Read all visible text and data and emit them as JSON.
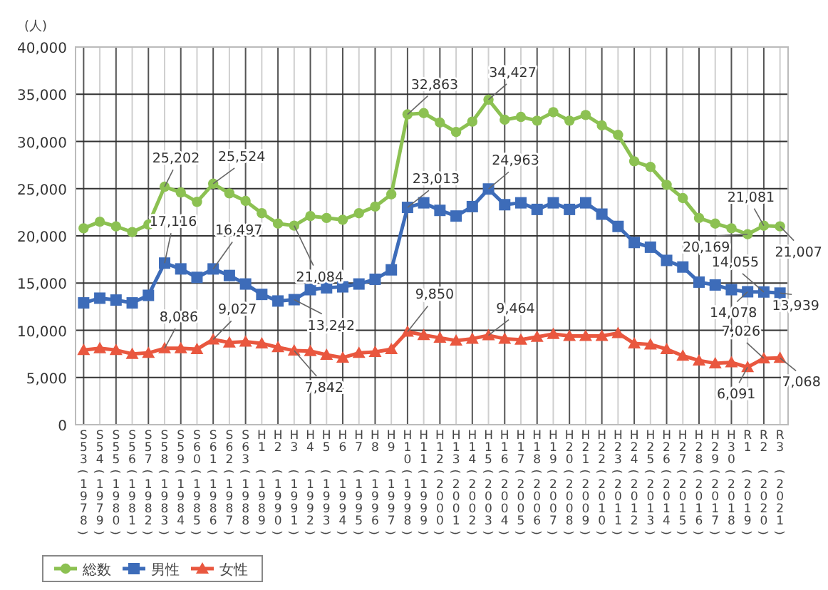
{
  "chart_data": {
    "type": "line",
    "ylabel": "(人)",
    "categories": [
      "S53(1978)",
      "S54(1979)",
      "S55(1980)",
      "S56(1981)",
      "S57(1982)",
      "S58(1983)",
      "S59(1984)",
      "S60(1985)",
      "S61(1986)",
      "S62(1987)",
      "S63(1988)",
      "H1(1989)",
      "H2(1990)",
      "H3(1991)",
      "H4(1992)",
      "H5(1993)",
      "H6(1994)",
      "H7(1995)",
      "H8(1996)",
      "H9(1997)",
      "H10(1998)",
      "H11(1999)",
      "H12(2000)",
      "H13(2001)",
      "H14(2002)",
      "H15(2003)",
      "H16(2004)",
      "H17(2005)",
      "H18(2006)",
      "H19(2007)",
      "H20(2008)",
      "H21(2009)",
      "H22(2010)",
      "H23(2011)",
      "H24(2012)",
      "H25(2013)",
      "H26(2014)",
      "H27(2015)",
      "H28(2016)",
      "H29(2017)",
      "H30(2018)",
      "R1(2019)",
      "R2(2020)",
      "R3(2021)"
    ],
    "series": [
      {
        "name": "総数",
        "color": "#8cc152",
        "marker": "circle",
        "values": [
          20800,
          21500,
          21000,
          20400,
          21200,
          25202,
          24600,
          23600,
          25524,
          24500,
          23700,
          22400,
          21300,
          21084,
          22100,
          21900,
          21700,
          22400,
          23100,
          24400,
          32863,
          33000,
          32000,
          31000,
          32100,
          34427,
          32300,
          32600,
          32200,
          33100,
          32200,
          32800,
          31700,
          30700,
          27900,
          27300,
          25400,
          24000,
          21900,
          21300,
          20800,
          20169,
          21081,
          21007
        ],
        "value_labels": [
          null,
          null,
          null,
          null,
          null,
          "25,202",
          null,
          null,
          "25,524",
          null,
          null,
          null,
          null,
          "21,084",
          null,
          null,
          null,
          null,
          null,
          null,
          "32,863",
          null,
          null,
          null,
          null,
          "34,427",
          null,
          null,
          null,
          null,
          null,
          null,
          null,
          null,
          null,
          null,
          null,
          null,
          null,
          null,
          null,
          "20,169",
          "21,081",
          "21,007"
        ]
      },
      {
        "name": "男性",
        "color": "#3d6cb9",
        "marker": "square",
        "values": [
          12900,
          13400,
          13200,
          12900,
          13700,
          17116,
          16500,
          15600,
          16497,
          15800,
          14900,
          13800,
          13100,
          13242,
          14300,
          14500,
          14600,
          14900,
          15400,
          16400,
          23013,
          23500,
          22700,
          22100,
          23100,
          24963,
          23300,
          23500,
          22800,
          23500,
          22800,
          23500,
          22300,
          21000,
          19300,
          18800,
          17400,
          16700,
          15100,
          14800,
          14300,
          14078,
          14055,
          13939
        ],
        "value_labels": [
          null,
          null,
          null,
          null,
          null,
          "17,116",
          null,
          null,
          "16,497",
          null,
          null,
          null,
          null,
          "13,242",
          null,
          null,
          null,
          null,
          null,
          null,
          "23,013",
          null,
          null,
          null,
          null,
          "24,963",
          null,
          null,
          null,
          null,
          null,
          null,
          null,
          null,
          null,
          null,
          null,
          null,
          null,
          null,
          null,
          "14,078",
          "14,055",
          "13,939"
        ]
      },
      {
        "name": "女性",
        "color": "#e9573f",
        "marker": "triangle",
        "values": [
          7900,
          8100,
          7900,
          7500,
          7600,
          8086,
          8100,
          8000,
          9027,
          8700,
          8800,
          8600,
          8200,
          7842,
          7800,
          7400,
          7100,
          7600,
          7700,
          8000,
          9850,
          9500,
          9200,
          8900,
          9100,
          9464,
          9100,
          9000,
          9300,
          9600,
          9400,
          9400,
          9400,
          9700,
          8600,
          8500,
          8000,
          7300,
          6800,
          6500,
          6600,
          6091,
          7026,
          7068
        ],
        "value_labels": [
          null,
          null,
          null,
          null,
          null,
          "8,086",
          null,
          null,
          "9,027",
          null,
          null,
          null,
          null,
          "7,842",
          null,
          null,
          null,
          null,
          null,
          null,
          "9,850",
          null,
          null,
          null,
          null,
          "9,464",
          null,
          null,
          null,
          null,
          null,
          null,
          null,
          null,
          null,
          null,
          null,
          null,
          null,
          null,
          null,
          "6,091",
          "7,026",
          "7,068"
        ]
      }
    ],
    "ylim": [
      0,
      40000
    ],
    "yticks": [
      0,
      {
        "value": 5000,
        "label": "5,000"
      },
      {
        "value": 10000,
        "label": "10,000"
      },
      {
        "value": 15000,
        "label": "15,000"
      },
      {
        "value": 20000,
        "label": "20,000"
      },
      {
        "value": 25000,
        "label": "25,000"
      },
      {
        "value": 30000,
        "label": "30,000"
      },
      {
        "value": 35000,
        "label": "35,000"
      },
      {
        "value": 40000,
        "label": "40,000"
      }
    ],
    "grid": true,
    "legend": "bottom left"
  }
}
